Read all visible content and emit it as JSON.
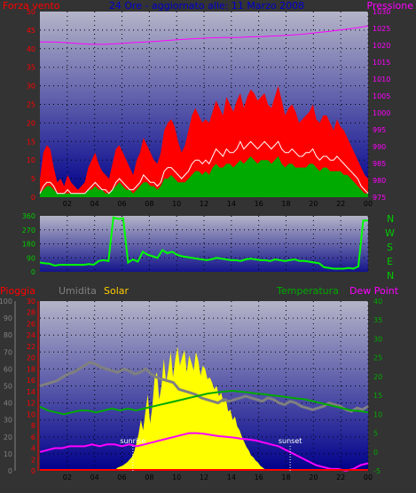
{
  "colors": {
    "background": "#333333",
    "wind_speed": "#ff0000",
    "wind_avg": "#ffffff",
    "wind_gust": "#00aa00",
    "pressure": "#ff00ff",
    "direction": "#00ff00",
    "rain": "#ff0000",
    "humidity": "#808080",
    "solar": "#ffff00",
    "temperature": "#00aa00",
    "dew_point": "#ff00ff",
    "plot_top": "#b4b4c8",
    "plot_bottom": "#00008c",
    "title": "#0000cc"
  },
  "chart_data": [
    {
      "type": "line",
      "title": "24 Ore - aggiornato alle: 11 Marzo 2008",
      "labels": {
        "left": "Forza vento",
        "right": "Pressione"
      },
      "x_ticks": [
        "02",
        "04",
        "06",
        "08",
        "10",
        "12",
        "14",
        "16",
        "18",
        "20",
        "22",
        "00"
      ],
      "y_left_ticks": [
        "0",
        "5",
        "10",
        "15",
        "20",
        "25",
        "30",
        "35",
        "40",
        "45",
        "50"
      ],
      "y_right_ticks": [
        "975",
        "980",
        "985",
        "990",
        "995",
        "1000",
        "1005",
        "1010",
        "1015",
        "1020",
        "1025",
        "1030"
      ],
      "ylim_left": [
        0,
        50
      ],
      "ylim_right": [
        975,
        1030
      ],
      "xlim": [
        0,
        24
      ],
      "grid": true,
      "series": [
        {
          "key": "wind_max",
          "values": [
            5,
            12,
            14,
            13,
            8,
            4,
            5,
            3,
            6,
            4,
            3,
            2,
            3,
            4,
            8,
            10,
            12,
            9,
            7,
            6,
            5,
            9,
            13,
            14,
            12,
            10,
            8,
            6,
            10,
            12,
            16,
            14,
            12,
            10,
            9,
            12,
            18,
            20,
            21,
            19,
            15,
            12,
            14,
            18,
            22,
            24,
            22,
            20,
            21,
            20,
            23,
            26,
            24,
            22,
            27,
            25,
            23,
            26,
            28,
            24,
            27,
            29,
            28,
            26,
            27,
            28,
            25,
            24,
            27,
            30,
            26,
            22,
            24,
            25,
            23,
            20,
            21,
            22,
            23,
            25,
            21,
            20,
            22,
            22,
            20,
            18,
            21,
            19,
            18,
            16,
            14,
            12,
            10,
            8,
            6,
            5
          ]
        },
        {
          "key": "wind_avg",
          "values": [
            1,
            3,
            4,
            4,
            3,
            1,
            1,
            1,
            2,
            1,
            1,
            1,
            1,
            1,
            2,
            3,
            4,
            3,
            2,
            2,
            1,
            2,
            4,
            5,
            4,
            3,
            2,
            2,
            3,
            4,
            6,
            5,
            4,
            4,
            3,
            4,
            7,
            8,
            8,
            7,
            6,
            5,
            6,
            7,
            9,
            10,
            10,
            9,
            10,
            9,
            11,
            13,
            12,
            11,
            13,
            12,
            12,
            13,
            15,
            13,
            14,
            15,
            14,
            13,
            14,
            15,
            14,
            13,
            14,
            15,
            13,
            12,
            12,
            13,
            12,
            11,
            11,
            12,
            12,
            13,
            11,
            10,
            11,
            11,
            10,
            10,
            11,
            10,
            9,
            8,
            7,
            6,
            5,
            3,
            2,
            1
          ]
        },
        {
          "key": "wind_green",
          "values": [
            1,
            2,
            3,
            3,
            2,
            1,
            1,
            1,
            1,
            1,
            1,
            1,
            1,
            1,
            2,
            2,
            3,
            2,
            2,
            1,
            1,
            2,
            3,
            4,
            3,
            2,
            2,
            1,
            2,
            3,
            4,
            4,
            3,
            3,
            2,
            3,
            5,
            5,
            6,
            5,
            4,
            4,
            4,
            5,
            6,
            7,
            7,
            6,
            7,
            6,
            8,
            9,
            8,
            8,
            9,
            9,
            8,
            9,
            10,
            9,
            10,
            11,
            10,
            9,
            10,
            10,
            10,
            9,
            10,
            11,
            9,
            8,
            9,
            9,
            8,
            8,
            8,
            8,
            9,
            9,
            8,
            7,
            8,
            8,
            7,
            7,
            7,
            7,
            6,
            6,
            5,
            4,
            3,
            2,
            1,
            1
          ]
        },
        {
          "key": "pressure",
          "values": [
            1021,
            1021,
            1020.8,
            1020.5,
            1020.3,
            1020.3,
            1020.5,
            1020.8,
            1021,
            1021.2,
            1021.5,
            1021.8,
            1022,
            1022.2,
            1022.3,
            1022.3,
            1022.5,
            1022.6,
            1022.8,
            1023,
            1023.3,
            1023.7,
            1024.1,
            1024.6,
            1025.1,
            1025.7
          ]
        }
      ]
    },
    {
      "type": "line",
      "labels": {
        "right": [
          "N",
          "W",
          "S",
          "E",
          "N"
        ]
      },
      "y_ticks": [
        "0",
        "90",
        "180",
        "270",
        "360"
      ],
      "ylim": [
        0,
        360
      ],
      "xlim": [
        0,
        24
      ],
      "grid": true,
      "series": [
        {
          "key": "direction",
          "values": [
            60,
            55,
            52,
            40,
            45,
            45,
            45,
            45,
            45,
            45,
            50,
            45,
            70,
            75,
            70,
            350,
            340,
            345,
            60,
            80,
            65,
            130,
            110,
            100,
            90,
            140,
            120,
            130,
            110,
            100,
            95,
            90,
            85,
            80,
            75,
            80,
            90,
            85,
            80,
            75,
            75,
            70,
            80,
            85,
            80,
            75,
            75,
            70,
            80,
            75,
            70,
            75,
            80,
            70,
            70,
            65,
            60,
            55,
            30,
            25,
            20,
            20,
            20,
            25,
            20,
            35,
            330,
            330
          ]
        }
      ]
    },
    {
      "type": "line",
      "labels": {
        "rain": "Pioggia",
        "humidity": "Umidita",
        "solar": "Solar",
        "temperature": "Temperatura",
        "dew_point": "Dew Point"
      },
      "annotations": [
        "sunrise",
        "sunset"
      ],
      "y_rain_ticks": [
        "0",
        "2",
        "4",
        "6",
        "8",
        "10",
        "12",
        "14",
        "16",
        "18",
        "20",
        "22",
        "24",
        "26",
        "28",
        "30"
      ],
      "y_humidity_ticks": [
        "0",
        "10",
        "20",
        "30",
        "40",
        "50",
        "60",
        "70",
        "80",
        "90",
        "100"
      ],
      "y_temp_ticks": [
        "-5",
        "0",
        "5",
        "10",
        "15",
        "20",
        "25",
        "30",
        "35",
        "40"
      ],
      "ylim_rain": [
        0,
        30
      ],
      "ylim_humidity": [
        0,
        100
      ],
      "ylim_temp": [
        -5,
        40
      ],
      "xlim": [
        0,
        24
      ],
      "grid": true,
      "series": [
        {
          "key": "humidity",
          "values": [
            50,
            51,
            52,
            53,
            55,
            57,
            58,
            60,
            62,
            64,
            63,
            61,
            60,
            59,
            58,
            60,
            59,
            57,
            58,
            60,
            57,
            55,
            54,
            53,
            52,
            48,
            47,
            46,
            45,
            43,
            42,
            41,
            40,
            42,
            41,
            42,
            43,
            44,
            43,
            42,
            41,
            43,
            42,
            40,
            39,
            41,
            40,
            38,
            37,
            36,
            37,
            38,
            40,
            39,
            38,
            36,
            35,
            37,
            36,
            38
          ]
        },
        {
          "key": "temperature",
          "values": [
            12,
            11,
            10.5,
            10,
            10.5,
            11,
            11,
            10.5,
            11,
            11.5,
            11,
            11.5,
            11,
            11.5,
            12,
            12.5,
            13,
            13.5,
            14,
            14.5,
            15,
            15.5,
            15.8,
            16,
            16.2,
            16,
            15.8,
            15.5,
            15.3,
            15,
            14.8,
            14.5,
            14.2,
            14,
            13.5,
            13,
            12.5,
            12,
            11.5,
            11,
            10.8,
            10.5
          ]
        },
        {
          "key": "dew_point",
          "values": [
            0,
            0.5,
            1,
            1,
            1.5,
            1.5,
            1.5,
            2,
            1.5,
            2,
            2,
            1.5,
            2,
            1.5,
            2,
            2.5,
            3,
            3.5,
            4,
            4.5,
            5,
            5,
            4.8,
            4.5,
            4.2,
            4,
            3.8,
            3.5,
            3.3,
            3,
            2.5,
            2,
            1.5,
            0.5,
            -0.5,
            -1.5,
            -2.5,
            -3.5,
            -4,
            -4.5,
            -4.5,
            -5,
            -4.5,
            -3.5,
            -3
          ]
        },
        {
          "key": "solar",
          "values": [
            0,
            0,
            0,
            0,
            0,
            0,
            0,
            0,
            0,
            0,
            0,
            0,
            0,
            0,
            0,
            0,
            0,
            0,
            0,
            0,
            0,
            0,
            0,
            0,
            0,
            0,
            0,
            0,
            0,
            0,
            0,
            0.3,
            0.6,
            1,
            2,
            2.5,
            3,
            4,
            5,
            6.5,
            8,
            11,
            16,
            22,
            30,
            24,
            35,
            45,
            28,
            38,
            55,
            58,
            42,
            50,
            66,
            52,
            60,
            70,
            55,
            66,
            73,
            62,
            67,
            71,
            58,
            68,
            64,
            59,
            70,
            65,
            56,
            62,
            60,
            54,
            55,
            52,
            48,
            50,
            44,
            46,
            40,
            43,
            35,
            36,
            30,
            32,
            26,
            24,
            20,
            17,
            14,
            12,
            9,
            8,
            6,
            5,
            3,
            2,
            1,
            0.5,
            0,
            0,
            0,
            0,
            0,
            0,
            0,
            0,
            0,
            0,
            0,
            0,
            0,
            0,
            0,
            0,
            0,
            0,
            0,
            0,
            0,
            0,
            0,
            0,
            0,
            0,
            0,
            0,
            0,
            0,
            0,
            0,
            0,
            0,
            0,
            0,
            0,
            0,
            0,
            0,
            0,
            0,
            0,
            0
          ]
        }
      ]
    }
  ]
}
